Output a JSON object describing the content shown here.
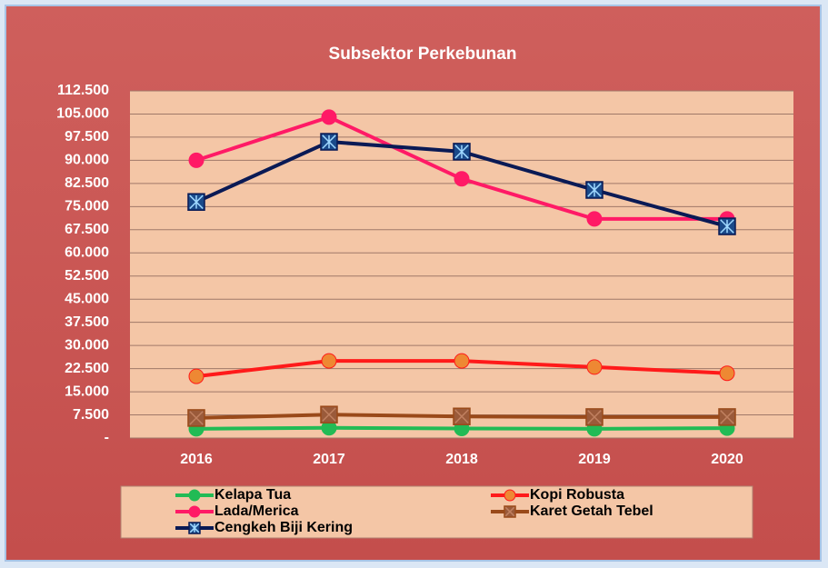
{
  "chart_data": {
    "type": "line",
    "title": "Subsektor Perkebunan",
    "categories": [
      "2016",
      "2017",
      "2018",
      "2019",
      "2020"
    ],
    "series": [
      {
        "name": "Kelapa Tua",
        "color": "#22bb55",
        "marker_color": "#22bb55",
        "marker": "circle",
        "values": [
          3000,
          3300,
          3100,
          3000,
          3200
        ]
      },
      {
        "name": "Kopi Robusta",
        "color": "#ff1a1a",
        "marker_color": "#ee8833",
        "marker": "circle",
        "values": [
          20000,
          25000,
          25000,
          23000,
          21000
        ]
      },
      {
        "name": "Lada/Merica",
        "color": "#ff1a66",
        "marker_color": "#ff1a66",
        "marker": "circle",
        "values": [
          90000,
          104000,
          84000,
          71000,
          71000
        ]
      },
      {
        "name": "Karet Getah Tebel",
        "color": "#9a4a1a",
        "marker_color": "#9a5a3a",
        "marker": "square-x",
        "values": [
          6500,
          7600,
          7000,
          6800,
          6800
        ]
      },
      {
        "name": "Cengkeh Biji Kering",
        "color": "#0a1a55",
        "marker_color": "#1a4a8a",
        "marker": "square-star",
        "values": [
          76500,
          96000,
          92800,
          80400,
          68600
        ]
      }
    ],
    "ylim": [
      0,
      112500
    ],
    "yticks": [
      {
        "value": 0,
        "label": "-"
      },
      {
        "value": 7500,
        "label": "7.500"
      },
      {
        "value": 15000,
        "label": "15.000"
      },
      {
        "value": 22500,
        "label": "22.500"
      },
      {
        "value": 30000,
        "label": "30.000"
      },
      {
        "value": 37500,
        "label": "37.500"
      },
      {
        "value": 45000,
        "label": "45.000"
      },
      {
        "value": 52500,
        "label": "52.500"
      },
      {
        "value": 60000,
        "label": "60.000"
      },
      {
        "value": 67500,
        "label": "67.500"
      },
      {
        "value": 75000,
        "label": "75.000"
      },
      {
        "value": 82500,
        "label": "82.500"
      },
      {
        "value": 90000,
        "label": "90.000"
      },
      {
        "value": 97500,
        "label": "97.500"
      },
      {
        "value": 105000,
        "label": "105.000"
      },
      {
        "value": 112500,
        "label": "112.500"
      }
    ],
    "grid": true
  }
}
